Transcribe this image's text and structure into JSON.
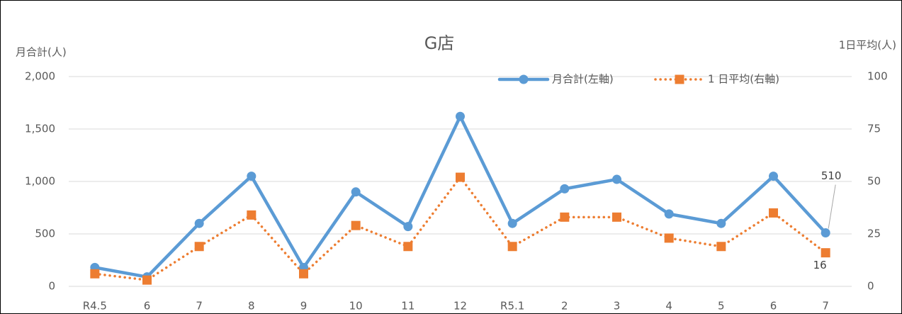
{
  "chart_data": {
    "type": "line",
    "title": "G店",
    "y_label": "月合計(人)",
    "y2_label": "1日平均(人)",
    "categories": [
      "R4.5",
      "6",
      "7",
      "8",
      "9",
      "10",
      "11",
      "12",
      "R5.1",
      "2",
      "3",
      "4",
      "5",
      "6",
      "7"
    ],
    "series": [
      {
        "name": "月合計(左軸)",
        "color": "#5b9bd5",
        "style": "solid",
        "marker": "circle",
        "values": [
          180,
          90,
          600,
          1050,
          180,
          900,
          570,
          1620,
          600,
          930,
          1020,
          690,
          600,
          1050,
          510
        ]
      },
      {
        "name": "1 日平均(右軸)",
        "color": "#ed7d31",
        "style": "dotted",
        "marker": "square",
        "axis": "y2",
        "values": [
          6,
          3,
          19,
          34,
          6,
          29,
          19,
          52,
          19,
          33,
          33,
          23,
          19,
          35,
          16
        ]
      }
    ],
    "ylim": [
      0,
      2000
    ],
    "yticks": [
      0,
      500,
      {
        "value": 1000,
        "label": "1,000"
      },
      {
        "value": 1500,
        "label": "1,500"
      },
      {
        "value": 2000,
        "label": "2,000"
      }
    ],
    "y2lim": [
      0,
      100
    ],
    "y2ticks": [
      0,
      25,
      50,
      75,
      100
    ],
    "grid": true,
    "legend": "top-right"
  }
}
